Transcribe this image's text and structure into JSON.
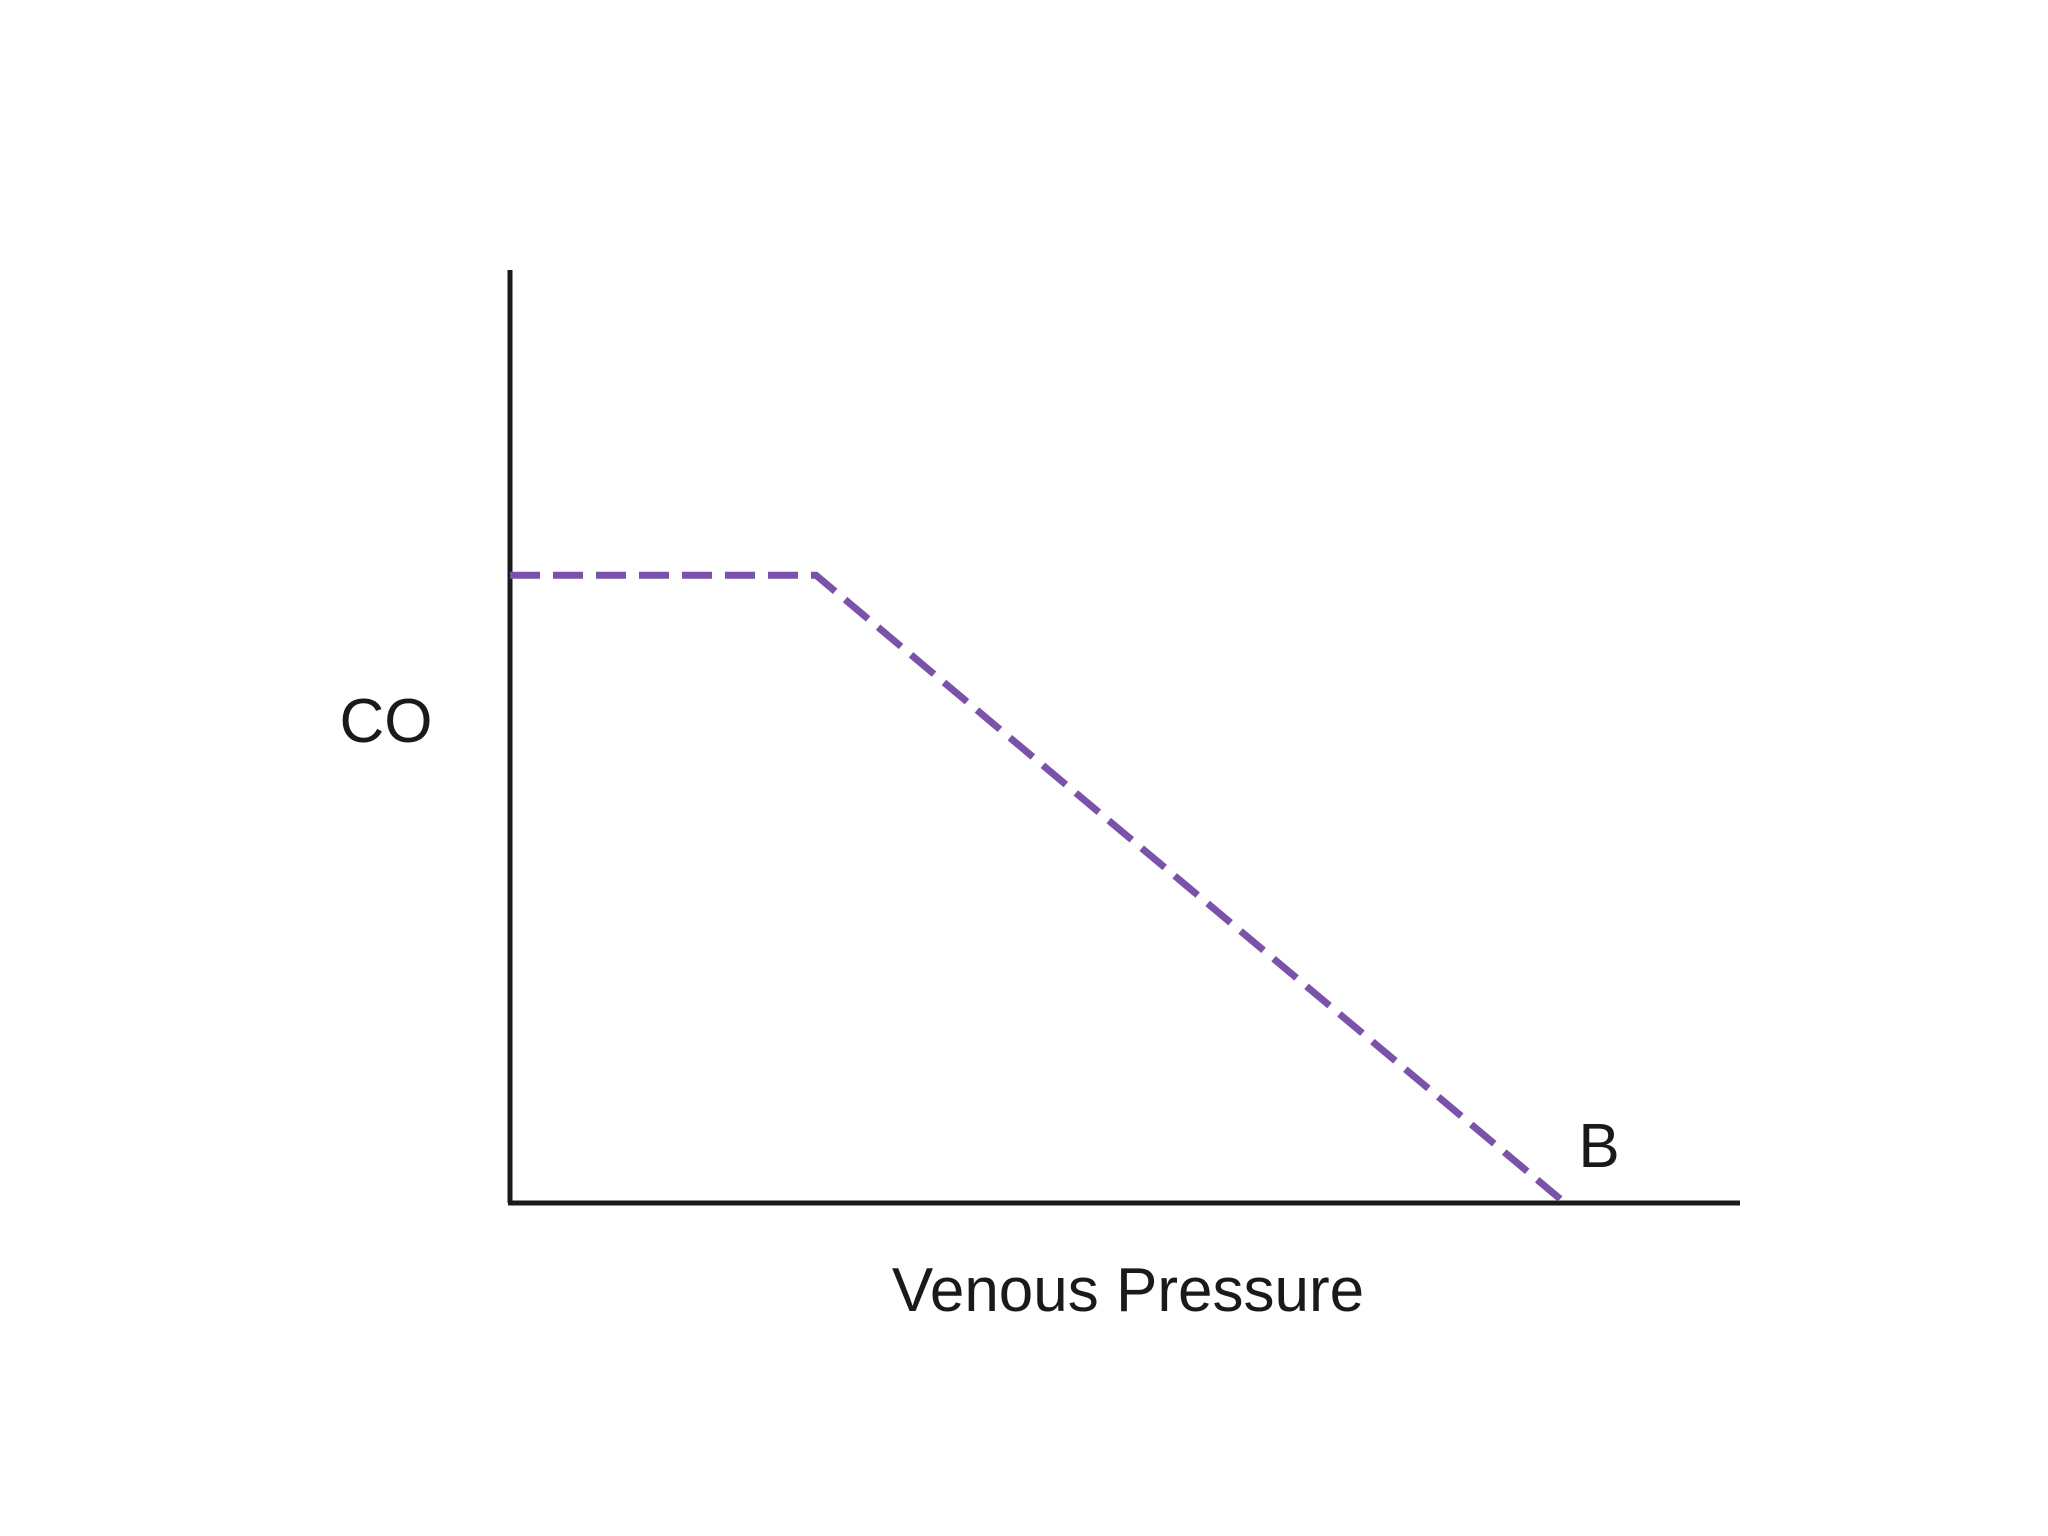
{
  "chart_data": {
    "type": "line",
    "xlabel": "Venous Pressure",
    "ylabel": "CO",
    "xlim": [
      0,
      10
    ],
    "ylim": [
      0,
      10
    ],
    "series": [
      {
        "x": [
          0,
          2.9,
          10
        ],
        "y": [
          7.2,
          7.2,
          0
        ],
        "color": "#7b52ab",
        "style": "dashed"
      }
    ],
    "annotations": [
      {
        "text": "B",
        "x": 10,
        "y": 0
      }
    ]
  }
}
